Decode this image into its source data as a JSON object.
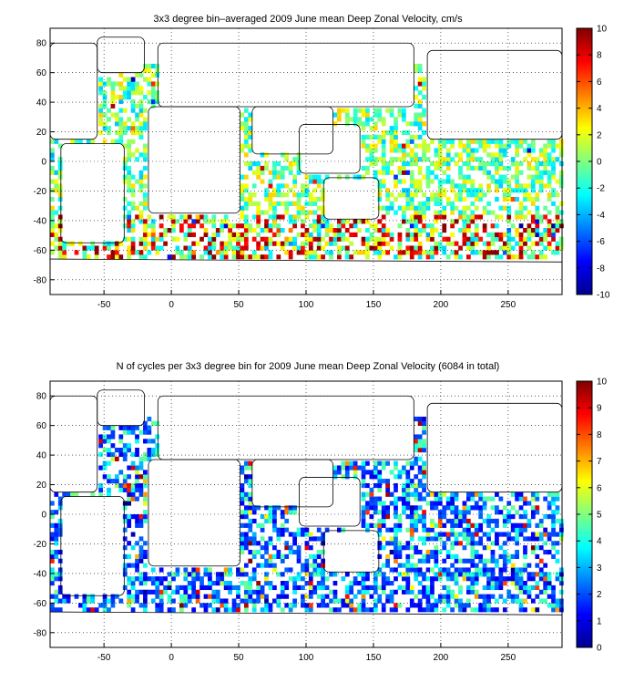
{
  "chart_data": [
    {
      "type": "heatmap",
      "title": "3x3 degree bin–averaged 2009 June mean Deep Zonal Velocity, cm/s",
      "x_ticks": [
        -50,
        0,
        50,
        100,
        150,
        200,
        250
      ],
      "y_ticks": [
        80,
        60,
        40,
        20,
        0,
        -20,
        -40,
        -60,
        -80
      ],
      "xlim": [
        -90,
        290
      ],
      "ylim": [
        -90,
        90
      ],
      "bin_size_deg": 3,
      "grid": true,
      "colorbar": {
        "min": -10,
        "max": 10,
        "ticks": [
          10,
          8,
          6,
          4,
          2,
          0,
          -2,
          -4,
          -6,
          -8,
          -10
        ],
        "colormap": "jet"
      }
    },
    {
      "type": "heatmap",
      "title": "N of cycles per 3x3 degree bin for 2009 June mean Deep Zonal Velocity (6084 in total)",
      "x_ticks": [
        -50,
        0,
        50,
        100,
        150,
        200,
        250
      ],
      "y_ticks": [
        80,
        60,
        40,
        20,
        0,
        -20,
        -40,
        -60,
        -80
      ],
      "xlim": [
        -90,
        290
      ],
      "ylim": [
        -90,
        90
      ],
      "bin_size_deg": 3,
      "grid": true,
      "colorbar": {
        "min": 0,
        "max": 10,
        "ticks": [
          10,
          9,
          8,
          7,
          6,
          5,
          4,
          3,
          2,
          1,
          0
        ],
        "colormap": "jet"
      }
    }
  ]
}
